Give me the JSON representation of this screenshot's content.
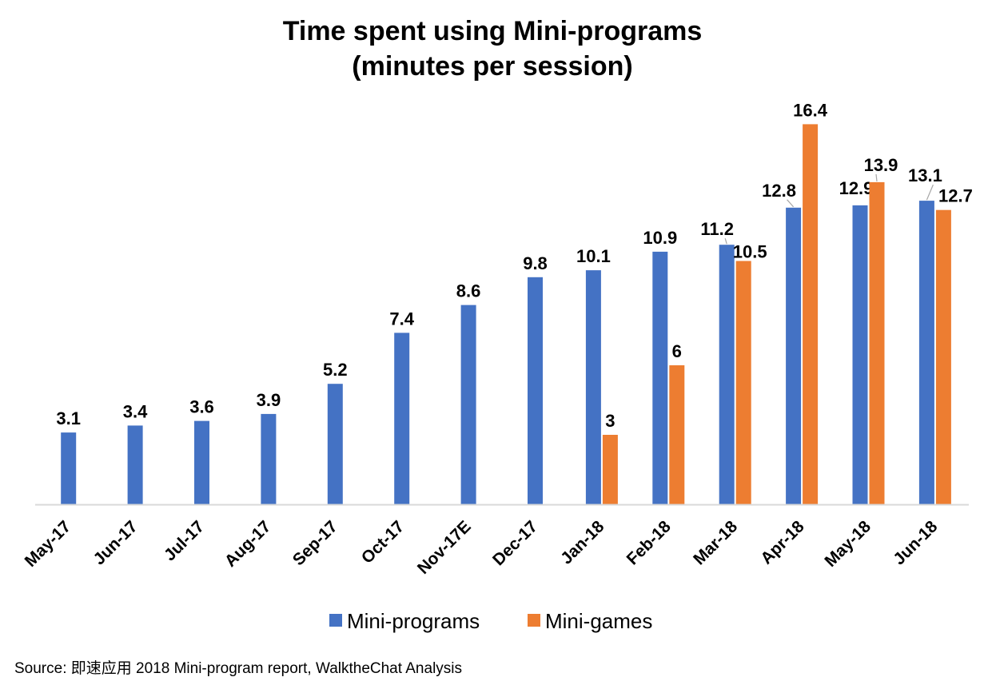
{
  "chart_data": {
    "type": "bar",
    "title": "Time spent using Mini-programs",
    "subtitle": "(minutes per session)",
    "categories": [
      "May-17",
      "Jun-17",
      "Jul-17",
      "Aug-17",
      "Sep-17",
      "Oct-17",
      "Nov-17E",
      "Dec-17",
      "Jan-18",
      "Feb-18",
      "Mar-18",
      "Apr-18",
      "May-18",
      "Jun-18"
    ],
    "series": [
      {
        "name": "Mini-programs",
        "color": "#4472C4",
        "values": [
          3.1,
          3.4,
          3.6,
          3.9,
          5.2,
          7.4,
          8.6,
          9.8,
          10.1,
          10.9,
          11.2,
          12.8,
          12.9,
          13.1
        ],
        "labels": [
          "3.1",
          "3.4",
          "3.6",
          "3.9",
          "5.2",
          "7.4",
          "8.6",
          "9.8",
          "10.1",
          "10.9",
          "11.2",
          "12.8",
          "12.9",
          "13.1"
        ]
      },
      {
        "name": "Mini-games",
        "color": "#ED7D31",
        "values": [
          null,
          null,
          null,
          null,
          null,
          null,
          null,
          null,
          3,
          6,
          10.5,
          16.4,
          13.9,
          12.7
        ],
        "labels": [
          null,
          null,
          null,
          null,
          null,
          null,
          null,
          null,
          "3",
          "6",
          "10.5",
          "16.4",
          "13.9",
          "12.7"
        ]
      }
    ],
    "ylim": [
      0,
      17
    ],
    "grid": false,
    "legend": "bottom",
    "xlabel": "",
    "ylabel": ""
  },
  "source_note": "Source: 即速应用 2018 Mini-program report, WalktheChat Analysis"
}
